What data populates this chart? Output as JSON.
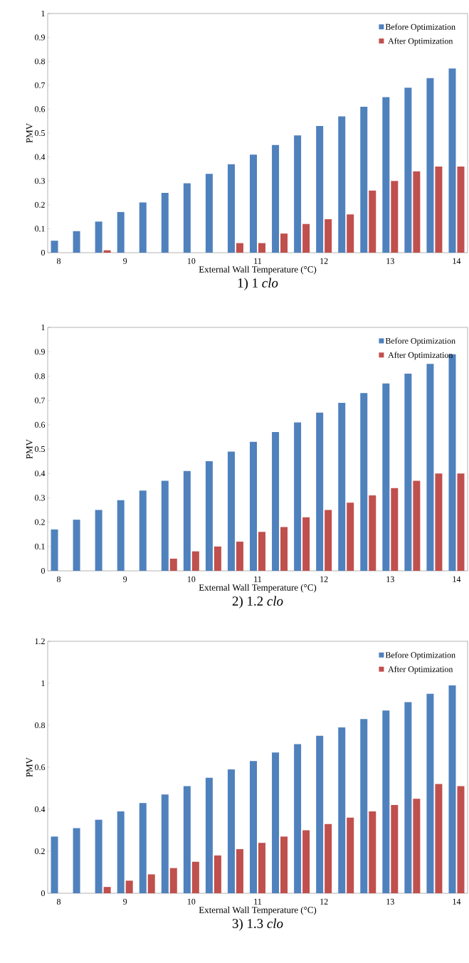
{
  "chart_data": [
    {
      "type": "bar",
      "title": "1) 1 *clo*",
      "xlabel": "External Wall Temperature (°C)",
      "ylabel": "PMV",
      "categories": [
        "8",
        null,
        null,
        "9",
        null,
        null,
        "10",
        null,
        null,
        "11",
        null,
        null,
        "12",
        null,
        null,
        "13",
        null,
        null,
        "14"
      ],
      "series": [
        {
          "name": "Before Optimization",
          "color": "#4f81bd",
          "values": [
            0.05,
            0.09,
            0.13,
            0.17,
            0.21,
            0.25,
            0.29,
            0.33,
            0.37,
            0.41,
            0.45,
            0.49,
            0.53,
            0.57,
            0.61,
            0.65,
            0.69,
            0.73,
            0.77
          ]
        },
        {
          "name": "After Optimization",
          "color": "#c0504d",
          "values": [
            null,
            null,
            0.01,
            null,
            null,
            null,
            null,
            null,
            0.04,
            0.04,
            0.08,
            0.12,
            0.14,
            0.16,
            0.26,
            0.3,
            0.34,
            0.36,
            0.36
          ]
        }
      ],
      "ylim": [
        0,
        1
      ],
      "yticks": [
        0,
        0.1,
        0.2,
        0.3,
        0.4,
        0.5,
        0.6,
        0.7,
        0.8,
        0.9,
        1
      ],
      "legend": "top right"
    },
    {
      "type": "bar",
      "title": "2) 1.2 *clo*",
      "xlabel": "External Wall Temperature (°C)",
      "ylabel": "PMV",
      "categories": [
        "8",
        null,
        null,
        "9",
        null,
        null,
        "10",
        null,
        null,
        "11",
        null,
        null,
        "12",
        null,
        null,
        "13",
        null,
        null,
        "14"
      ],
      "series": [
        {
          "name": "Before Optimization",
          "color": "#4f81bd",
          "values": [
            0.17,
            0.21,
            0.25,
            0.29,
            0.33,
            0.37,
            0.41,
            0.45,
            0.49,
            0.53,
            0.57,
            0.61,
            0.65,
            0.69,
            0.73,
            0.77,
            0.81,
            0.85,
            0.89
          ]
        },
        {
          "name": "After Optimization",
          "color": "#c0504d",
          "values": [
            null,
            null,
            null,
            null,
            null,
            0.05,
            0.08,
            0.1,
            0.12,
            0.16,
            0.18,
            0.22,
            0.25,
            0.28,
            0.31,
            0.34,
            0.37,
            0.4,
            0.4
          ]
        }
      ],
      "ylim": [
        0,
        1
      ],
      "yticks": [
        0,
        0.1,
        0.2,
        0.3,
        0.4,
        0.5,
        0.6,
        0.7,
        0.8,
        0.9,
        1
      ],
      "legend": "top right"
    },
    {
      "type": "bar",
      "title": "3) 1.3 *clo*",
      "xlabel": "External Wall Temperature (°C)",
      "ylabel": "PMV",
      "categories": [
        "8",
        null,
        null,
        "9",
        null,
        null,
        "10",
        null,
        null,
        "11",
        null,
        null,
        "12",
        null,
        null,
        "13",
        null,
        null,
        "14"
      ],
      "series": [
        {
          "name": "Before Optimization",
          "color": "#4f81bd",
          "values": [
            0.27,
            0.31,
            0.35,
            0.39,
            0.43,
            0.47,
            0.51,
            0.55,
            0.59,
            0.63,
            0.67,
            0.71,
            0.75,
            0.79,
            0.83,
            0.87,
            0.91,
            0.95,
            0.99
          ]
        },
        {
          "name": "After Optimization",
          "color": "#c0504d",
          "values": [
            null,
            null,
            0.03,
            0.06,
            0.09,
            0.12,
            0.15,
            0.18,
            0.21,
            0.24,
            0.27,
            0.3,
            0.33,
            0.36,
            0.39,
            0.42,
            0.45,
            0.52,
            0.51
          ]
        }
      ],
      "ylim": [
        0,
        1.2
      ],
      "yticks": [
        0,
        0.2,
        0.4,
        0.6,
        0.8,
        1,
        1.2
      ],
      "legend": "top right"
    }
  ]
}
